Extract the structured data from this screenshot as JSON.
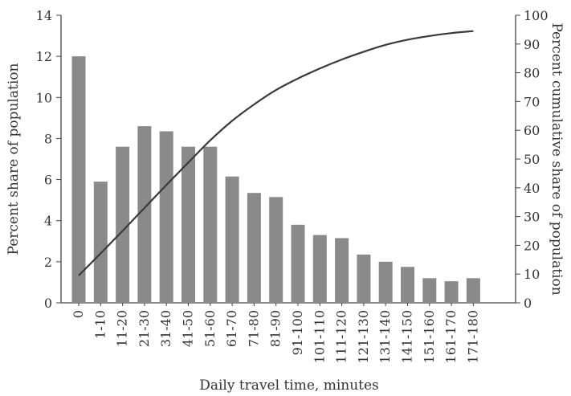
{
  "chart_data": {
    "type": "bar",
    "categories": [
      "0",
      "1-10",
      "11-20",
      "21-30",
      "31-40",
      "41-50",
      "51-60",
      "61-70",
      "71-80",
      "81-90",
      "91-100",
      "101-110",
      "111-120",
      "121-130",
      "131-140",
      "141-150",
      "151-160",
      "161-170",
      "171-180"
    ],
    "series": [
      {
        "axis": "left",
        "type": "bar",
        "values": [
          12.0,
          5.9,
          7.6,
          8.6,
          8.35,
          7.6,
          7.6,
          6.15,
          5.35,
          5.15,
          3.8,
          3.3,
          3.15,
          2.35,
          2.0,
          1.75,
          1.2,
          1.05,
          1.2
        ]
      },
      {
        "axis": "right",
        "type": "line",
        "values": [
          9.5,
          17.2,
          25.0,
          33.0,
          41.0,
          48.8,
          56.5,
          63.3,
          69.0,
          74.0,
          78.0,
          81.5,
          84.6,
          87.3,
          89.7,
          91.5,
          92.8,
          93.8,
          94.5
        ]
      }
    ],
    "xlabel": "Daily travel time, minutes",
    "ylabel": "Percent share of population",
    "y2label": "Percent cumulative share of population",
    "ylim": [
      0,
      14
    ],
    "y2lim": [
      0,
      100
    ],
    "yticks": [
      0,
      2,
      4,
      6,
      8,
      10,
      12,
      14
    ],
    "y2ticks": [
      0,
      10,
      20,
      30,
      40,
      50,
      60,
      70,
      80,
      90,
      100
    ],
    "grid": false,
    "colors": {
      "bar": "#8a8a8a",
      "line": "#3a3a3a",
      "axis": "#444444"
    }
  }
}
